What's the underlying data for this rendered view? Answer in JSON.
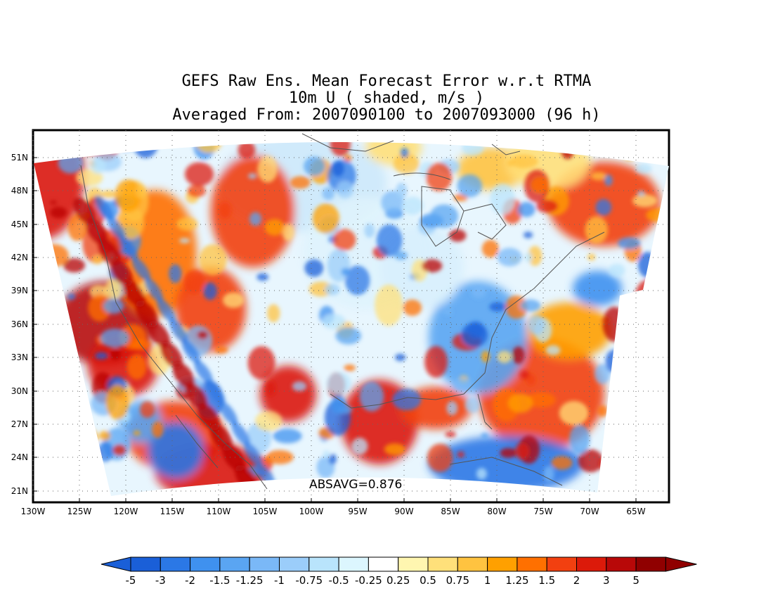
{
  "title": {
    "line1": "GEFS Raw Ens. Mean Forecast Error w.r.t RTMA",
    "line2": "10m U ( shaded, m/s )",
    "line3": "Averaged From: 2007090100 to 2007093000 (96 h)"
  },
  "absavg_label": "ABSAVG=0.876",
  "lat_labels": [
    "51N",
    "48N",
    "45N",
    "42N",
    "39N",
    "36N",
    "33N",
    "30N",
    "27N",
    "24N",
    "21N"
  ],
  "lon_labels": [
    "130W",
    "125W",
    "120W",
    "115W",
    "110W",
    "105W",
    "100W",
    "95W",
    "90W",
    "85W",
    "80W",
    "75W",
    "70W",
    "65W"
  ],
  "colorbar": {
    "labels": [
      "-5",
      "-3",
      "-2",
      "-1.5",
      "-1.25",
      "-1",
      "-0.75",
      "-0.5",
      "-0.25",
      "0.25",
      "0.5",
      "0.75",
      "1",
      "1.25",
      "1.5",
      "2",
      "3",
      "5"
    ],
    "colors": [
      "#1a5fd8",
      "#2b78e6",
      "#3f91ef",
      "#5aa5f2",
      "#7ab8f7",
      "#9bcdfa",
      "#b9e4fc",
      "#dcf6fe",
      "#ffffff",
      "#fff6b0",
      "#ffe07a",
      "#ffc340",
      "#ffa000",
      "#ff7000",
      "#f24010",
      "#dc1a0a",
      "#b80808",
      "#900000"
    ]
  },
  "colors": {
    "land_outline": "#555555",
    "grid": "#666666",
    "cool": "#3f91ef",
    "warm": "#f24010"
  }
}
